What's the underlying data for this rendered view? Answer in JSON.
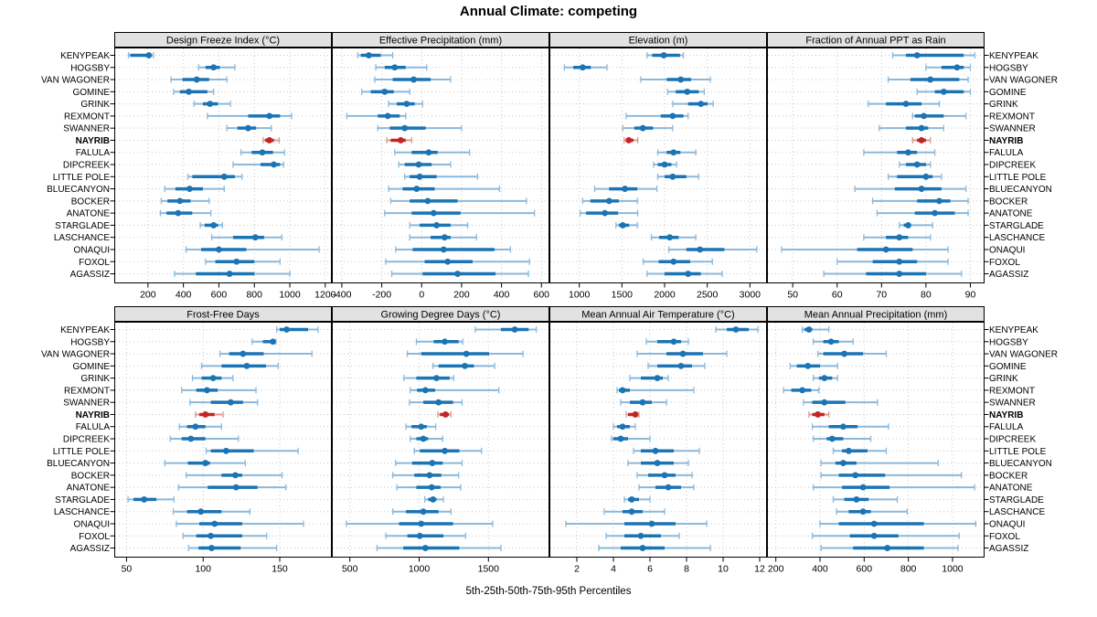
{
  "title": "Annual Climate: competing",
  "footer_axis_label": "5th-25th-50th-75th-95th Percentiles",
  "percentile_labels": [
    "5th",
    "25th",
    "50th",
    "75th",
    "95th"
  ],
  "stations": [
    "KENYPEAK",
    "HOGSBY",
    "VAN WAGONER",
    "GOMINE",
    "GRINK",
    "REXMONT",
    "SWANNER",
    "NAYRIB",
    "FALULA",
    "DIPCREEK",
    "LITTLE POLE",
    "BLUECANYON",
    "BOCKER",
    "ANATONE",
    "STARGLADE",
    "LASCHANCE",
    "ONAQUI",
    "FOXOL",
    "AGASSIZ"
  ],
  "highlighted_station": "NAYRIB",
  "colors": {
    "series": "#1b74b4",
    "series_light": "#8cb8da",
    "highlight": "#c42422",
    "highlight_light": "#dc9a96",
    "strip_bg": "#e2e2e2",
    "grid": "#c8c8c8",
    "border": "#000000",
    "text": "#000000"
  },
  "chart_data": [
    {
      "type": "dotplot-range",
      "title": "Design Freeze Index (°C)",
      "grid_position": {
        "row": 0,
        "col": 0
      },
      "xlim": [
        10,
        1237
      ],
      "ticks": [
        200,
        400,
        600,
        800,
        1000,
        1200
      ],
      "values": [
        [
          90,
          100,
          205,
          215,
          230
        ],
        [
          485,
          525,
          570,
          605,
          690
        ],
        [
          330,
          395,
          475,
          545,
          645
        ],
        [
          345,
          380,
          430,
          535,
          570
        ],
        [
          460,
          510,
          550,
          595,
          665
        ],
        [
          535,
          765,
          885,
          945,
          1010
        ],
        [
          645,
          705,
          765,
          810,
          895
        ],
        [
          850,
          860,
          885,
          910,
          940
        ],
        [
          725,
          785,
          845,
          905,
          970
        ],
        [
          680,
          835,
          910,
          945,
          965
        ],
        [
          425,
          450,
          630,
          690,
          730
        ],
        [
          295,
          355,
          435,
          510,
          630
        ],
        [
          275,
          310,
          380,
          440,
          545
        ],
        [
          270,
          305,
          370,
          450,
          555
        ],
        [
          495,
          520,
          570,
          595,
          620
        ],
        [
          560,
          680,
          805,
          855,
          955
        ],
        [
          415,
          500,
          600,
          755,
          1165
        ],
        [
          525,
          580,
          700,
          800,
          945
        ],
        [
          350,
          470,
          660,
          800,
          1000
        ]
      ]
    },
    {
      "type": "dotplot-range",
      "title": "Effective Precipitation (mm)",
      "grid_position": {
        "row": 0,
        "col": 1
      },
      "xlim": [
        -450,
        640
      ],
      "ticks": [
        -400,
        -200,
        0,
        200,
        400,
        600
      ],
      "values": [
        [
          -320,
          -305,
          -265,
          -205,
          -145
        ],
        [
          -230,
          -185,
          -135,
          -80,
          25
        ],
        [
          -235,
          -145,
          -40,
          45,
          145
        ],
        [
          -300,
          -255,
          -185,
          -140,
          -60
        ],
        [
          -165,
          -125,
          -75,
          -35,
          5
        ],
        [
          -375,
          -220,
          -170,
          -110,
          -80
        ],
        [
          -220,
          -160,
          -85,
          20,
          200
        ],
        [
          -175,
          -155,
          -105,
          -80,
          -50
        ],
        [
          -135,
          -50,
          35,
          80,
          240
        ],
        [
          -115,
          -85,
          -15,
          50,
          145
        ],
        [
          -85,
          -60,
          -10,
          75,
          280
        ],
        [
          -165,
          -95,
          -25,
          65,
          390
        ],
        [
          -155,
          -60,
          30,
          180,
          525
        ],
        [
          -185,
          -50,
          60,
          195,
          565
        ],
        [
          -60,
          -10,
          75,
          145,
          230
        ],
        [
          -60,
          45,
          115,
          145,
          275
        ],
        [
          -130,
          -45,
          110,
          365,
          445
        ],
        [
          -180,
          15,
          130,
          255,
          540
        ],
        [
          -150,
          5,
          180,
          370,
          535
        ]
      ]
    },
    {
      "type": "dotplot-range",
      "title": "Elevation (m)",
      "grid_position": {
        "row": 0,
        "col": 2
      },
      "xlim": [
        650,
        3200
      ],
      "ticks": [
        1000,
        1500,
        2000,
        2500,
        3000
      ],
      "values": [
        [
          1795,
          1855,
          1990,
          2180,
          2220
        ],
        [
          825,
          930,
          1040,
          1135,
          1325
        ],
        [
          1720,
          2025,
          2190,
          2310,
          2535
        ],
        [
          2035,
          2130,
          2265,
          2400,
          2465
        ],
        [
          2095,
          2275,
          2425,
          2505,
          2570
        ],
        [
          1550,
          1955,
          2095,
          2220,
          2275
        ],
        [
          1510,
          1645,
          1745,
          1865,
          2095
        ],
        [
          1525,
          1545,
          1580,
          1635,
          1685
        ],
        [
          1920,
          2025,
          2105,
          2185,
          2365
        ],
        [
          1870,
          1920,
          2000,
          2080,
          2140
        ],
        [
          1920,
          2000,
          2095,
          2255,
          2400
        ],
        [
          1180,
          1350,
          1535,
          1680,
          1910
        ],
        [
          1040,
          1130,
          1350,
          1465,
          1680
        ],
        [
          1010,
          1080,
          1300,
          1455,
          1685
        ],
        [
          1430,
          1465,
          1510,
          1585,
          1680
        ],
        [
          1845,
          1935,
          2060,
          2165,
          2365
        ],
        [
          2050,
          2255,
          2415,
          2700,
          3080
        ],
        [
          1750,
          1930,
          2105,
          2300,
          2560
        ],
        [
          1795,
          2000,
          2275,
          2425,
          2675
        ]
      ]
    },
    {
      "type": "dotplot-range",
      "title": "Fraction of Annual PPT as Rain",
      "grid_position": {
        "row": 0,
        "col": 3
      },
      "xlim": [
        44.2,
        93.2
      ],
      "ticks": [
        50,
        60,
        70,
        80,
        90
      ],
      "values": [
        [
          72.5,
          75.5,
          78,
          88.5,
          91
        ],
        [
          80,
          83.5,
          87,
          88.5,
          90
        ],
        [
          71.5,
          76.5,
          81,
          87.5,
          89.5
        ],
        [
          78,
          82,
          84,
          88.5,
          90
        ],
        [
          67,
          71,
          75.5,
          79,
          83
        ],
        [
          77,
          77.5,
          79.5,
          84,
          89
        ],
        [
          69.5,
          75.5,
          79,
          80.5,
          84
        ],
        [
          77,
          78,
          79,
          80,
          81
        ],
        [
          66,
          73.5,
          76,
          78,
          82
        ],
        [
          74,
          75.5,
          78,
          80,
          81
        ],
        [
          71.5,
          73.5,
          80,
          81.5,
          83.5
        ],
        [
          64,
          73,
          79,
          83.5,
          89
        ],
        [
          68,
          78,
          83,
          85.5,
          89.5
        ],
        [
          69,
          77.5,
          82,
          86.5,
          89.5
        ],
        [
          74,
          75,
          76,
          76.5,
          81.5
        ],
        [
          66,
          71,
          74,
          76,
          81
        ],
        [
          47.5,
          64.5,
          71,
          77,
          85
        ],
        [
          60,
          68,
          74,
          78,
          85
        ],
        [
          57,
          66.5,
          74,
          80,
          88
        ]
      ]
    },
    {
      "type": "dotplot-range",
      "title": "Frost-Free Days",
      "grid_position": {
        "row": 1,
        "col": 0
      },
      "xlim": [
        42,
        184
      ],
      "ticks": [
        50,
        100,
        150
      ],
      "values": [
        [
          148,
          150,
          154.5,
          168.5,
          175
        ],
        [
          132,
          139,
          145.5,
          146.5,
          147.5
        ],
        [
          111,
          117,
          126,
          139.5,
          171
        ],
        [
          99,
          112,
          128.5,
          141,
          149
        ],
        [
          93,
          99,
          106.5,
          112,
          119.5
        ],
        [
          86,
          95.5,
          102.5,
          109.5,
          134.5
        ],
        [
          91.5,
          105,
          118,
          126,
          135.5
        ],
        [
          95,
          97.5,
          101.5,
          107.5,
          113
        ],
        [
          84.5,
          89.5,
          95,
          101.5,
          112
        ],
        [
          78.5,
          86,
          92,
          101.5,
          123
        ],
        [
          102,
          105,
          115,
          133,
          162
        ],
        [
          75,
          90,
          101.5,
          104.5,
          127.5
        ],
        [
          89,
          112,
          121,
          125.5,
          151.5
        ],
        [
          84,
          103,
          121.5,
          135.5,
          154
        ],
        [
          51,
          54.5,
          61.5,
          69.5,
          81
        ],
        [
          80.5,
          89.5,
          98.5,
          112,
          130.5
        ],
        [
          82.5,
          97.5,
          107.5,
          125.5,
          165.5
        ],
        [
          87,
          95.5,
          105,
          125.5,
          141.5
        ],
        [
          90.5,
          97,
          105.5,
          124.5,
          148
        ]
      ]
    },
    {
      "type": "dotplot-range",
      "title": "Growing Degree Days (°C)",
      "grid_position": {
        "row": 1,
        "col": 1
      },
      "xlim": [
        370,
        1940
      ],
      "ticks": [
        500,
        1000,
        1500
      ],
      "values": [
        [
          1405,
          1590,
          1690,
          1790,
          1845
        ],
        [
          980,
          1105,
          1185,
          1285,
          1315
        ],
        [
          915,
          1015,
          1340,
          1505,
          1750
        ],
        [
          1100,
          1140,
          1330,
          1395,
          1545
        ],
        [
          890,
          980,
          1125,
          1220,
          1250
        ],
        [
          935,
          985,
          1045,
          1115,
          1575
        ],
        [
          930,
          1030,
          1140,
          1245,
          1310
        ],
        [
          1135,
          1150,
          1190,
          1215,
          1230
        ],
        [
          905,
          945,
          1015,
          1055,
          1120
        ],
        [
          935,
          980,
          1030,
          1065,
          1170
        ],
        [
          965,
          1005,
          1185,
          1290,
          1450
        ],
        [
          830,
          950,
          1095,
          1170,
          1310
        ],
        [
          810,
          965,
          1075,
          1160,
          1285
        ],
        [
          840,
          980,
          1090,
          1155,
          1300
        ],
        [
          1040,
          1065,
          1100,
          1125,
          1175
        ],
        [
          810,
          905,
          1030,
          1140,
          1230
        ],
        [
          475,
          855,
          1015,
          1245,
          1530
        ],
        [
          760,
          915,
          1005,
          1175,
          1335
        ],
        [
          695,
          885,
          1045,
          1290,
          1590
        ]
      ]
    },
    {
      "type": "dotplot-range",
      "title": "Mean Annual Air Temperature (°C)",
      "grid_position": {
        "row": 1,
        "col": 2
      },
      "xlim": [
        0.5,
        12.4
      ],
      "ticks": [
        2,
        4,
        6,
        8,
        10,
        12
      ],
      "values": [
        [
          9.6,
          10.2,
          10.7,
          11.4,
          11.9
        ],
        [
          5.8,
          6.4,
          7.3,
          7.7,
          8.1
        ],
        [
          5.3,
          6.9,
          7.8,
          8.9,
          10.2
        ],
        [
          5.9,
          6.4,
          7.7,
          8.3,
          9.0
        ],
        [
          4.9,
          5.5,
          6.4,
          6.7,
          7.0
        ],
        [
          4.2,
          4.3,
          4.5,
          4.9,
          8.4
        ],
        [
          4.4,
          4.9,
          5.6,
          6.1,
          6.9
        ],
        [
          4.7,
          4.8,
          5.2,
          5.3,
          5.4
        ],
        [
          4.0,
          4.2,
          4.5,
          4.9,
          5.2
        ],
        [
          3.9,
          4.0,
          4.4,
          4.8,
          6.0
        ],
        [
          5.1,
          5.5,
          6.3,
          7.3,
          8.7
        ],
        [
          4.8,
          5.5,
          6.4,
          7.3,
          8.1
        ],
        [
          5.3,
          5.9,
          6.8,
          7.4,
          8.3
        ],
        [
          5.4,
          6.3,
          7.0,
          7.7,
          8.4
        ],
        [
          4.6,
          4.8,
          5.0,
          5.4,
          6.0
        ],
        [
          3.5,
          4.5,
          5.0,
          5.6,
          6.8
        ],
        [
          1.4,
          4.6,
          6.1,
          7.4,
          9.1
        ],
        [
          3.6,
          4.6,
          5.5,
          6.6,
          7.6
        ],
        [
          3.2,
          4.4,
          5.6,
          6.8,
          9.3
        ]
      ]
    },
    {
      "type": "dotplot-range",
      "title": "Mean Annual Precipitation (mm)",
      "grid_position": {
        "row": 1,
        "col": 3
      },
      "xlim": [
        160,
        1145
      ],
      "ticks": [
        200,
        400,
        600,
        800,
        1000
      ],
      "values": [
        [
          320,
          330,
          350,
          365,
          440
        ],
        [
          370,
          415,
          450,
          485,
          550
        ],
        [
          390,
          415,
          510,
          595,
          700
        ],
        [
          265,
          295,
          345,
          400,
          480
        ],
        [
          370,
          395,
          420,
          455,
          480
        ],
        [
          235,
          270,
          320,
          360,
          395
        ],
        [
          325,
          365,
          420,
          515,
          660
        ],
        [
          350,
          365,
          390,
          420,
          440
        ],
        [
          365,
          440,
          505,
          570,
          710
        ],
        [
          370,
          430,
          455,
          505,
          630
        ],
        [
          460,
          500,
          530,
          615,
          700
        ],
        [
          405,
          470,
          505,
          565,
          935
        ],
        [
          405,
          485,
          560,
          695,
          1040
        ],
        [
          370,
          500,
          595,
          715,
          1100
        ],
        [
          460,
          510,
          565,
          620,
          750
        ],
        [
          475,
          530,
          595,
          630,
          795
        ],
        [
          400,
          485,
          645,
          870,
          1105
        ],
        [
          365,
          535,
          645,
          755,
          1030
        ],
        [
          405,
          550,
          705,
          870,
          1025
        ]
      ]
    }
  ]
}
